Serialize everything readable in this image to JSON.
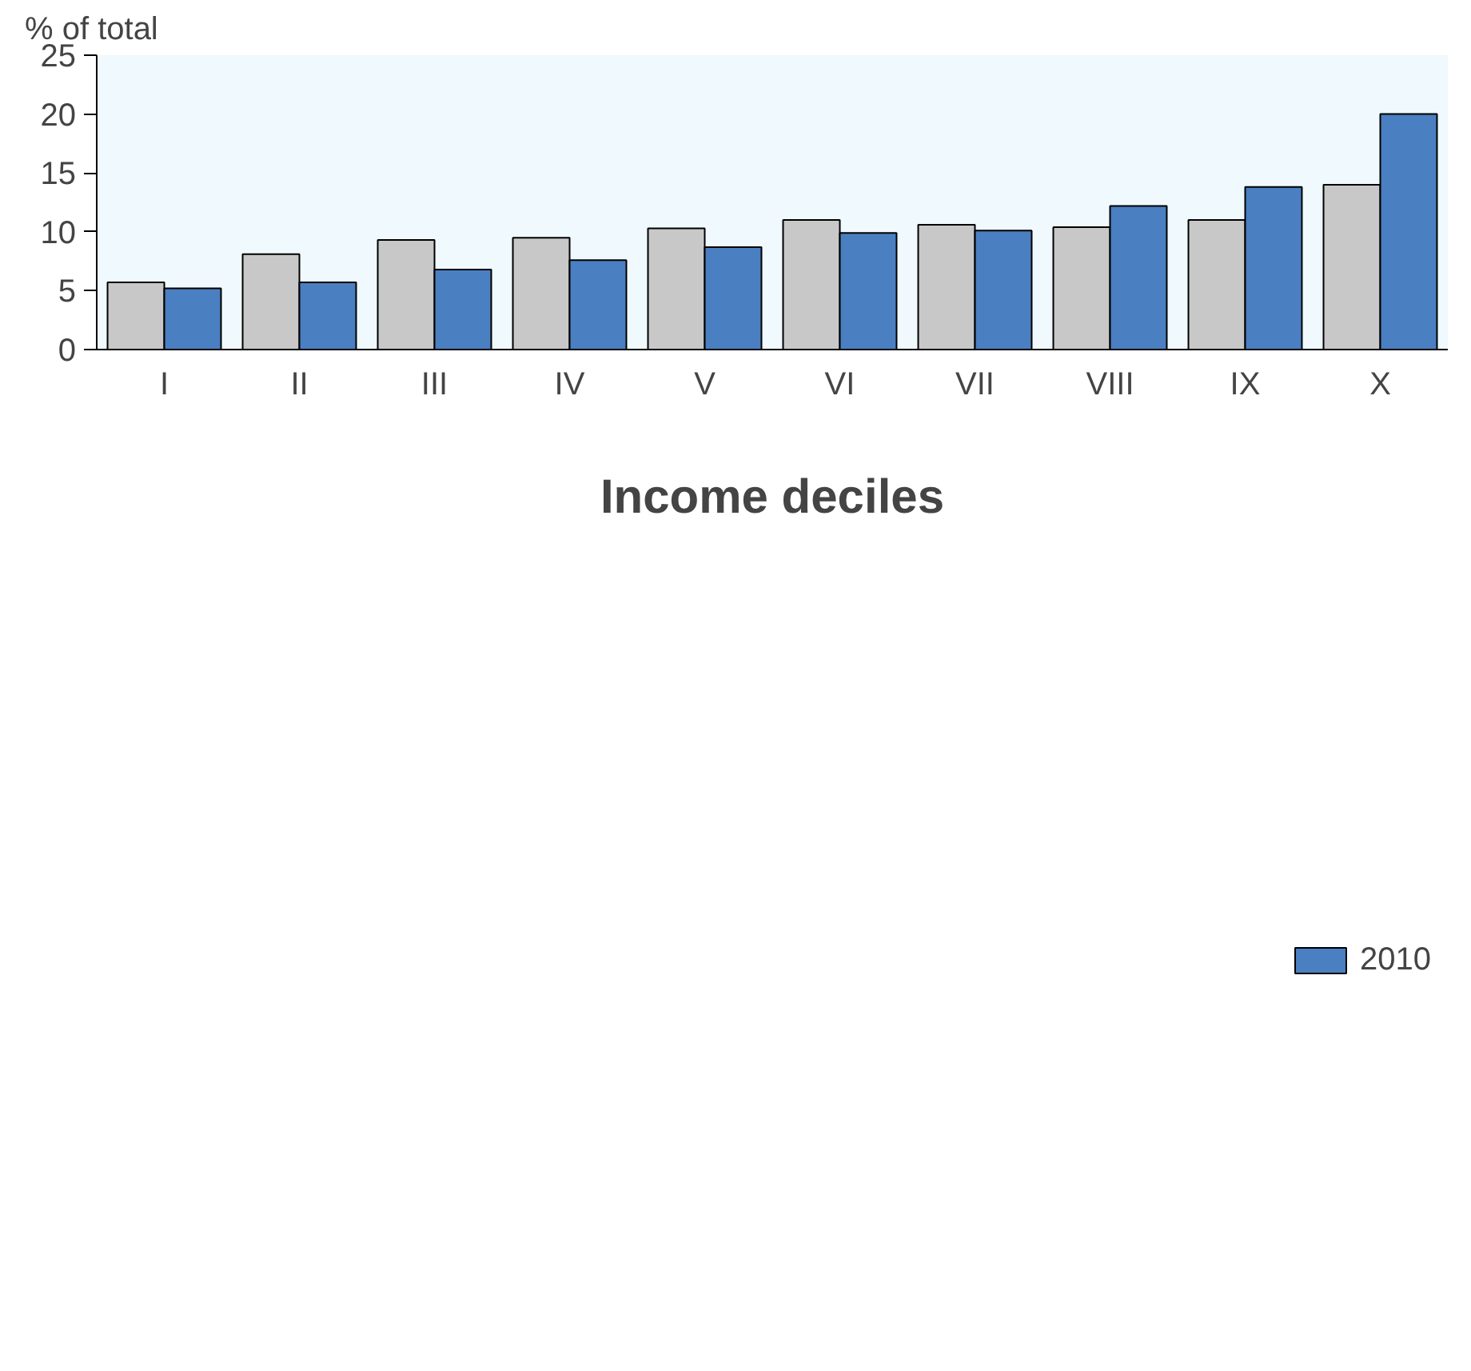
{
  "chart_data": {
    "type": "bar",
    "ylabel": "% of total",
    "xlabel": "Income deciles",
    "categories": [
      "I",
      "II",
      "III",
      "IV",
      "V",
      "VI",
      "VII",
      "VIII",
      "IX",
      "X"
    ],
    "series": [
      {
        "color": "#c8c8c8",
        "values": [
          5.7,
          8.1,
          9.3,
          9.5,
          10.3,
          11.0,
          10.6,
          10.4,
          11.0,
          14.0
        ]
      },
      {
        "name": "2010",
        "color": "#4a7fc1",
        "values": [
          5.2,
          5.7,
          6.8,
          7.6,
          8.7,
          9.9,
          10.1,
          12.2,
          13.8,
          20.0
        ]
      }
    ],
    "ylim": [
      0,
      25
    ],
    "yticks": [
      0,
      5,
      10,
      15,
      20,
      25
    ],
    "grid": false,
    "legend": "bottom"
  }
}
